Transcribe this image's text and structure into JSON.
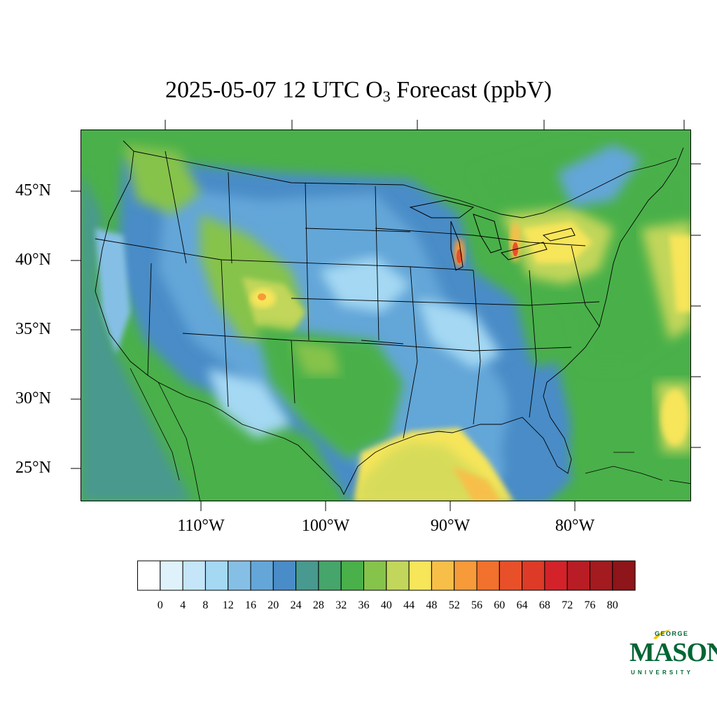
{
  "title": {
    "main": "2025-05-07 12 UTC O",
    "subscript": "3",
    "suffix": " Forecast (ppbV)"
  },
  "axes": {
    "lat_labels": [
      "45°N",
      "40°N",
      "35°N",
      "30°N",
      "25°N"
    ],
    "lon_labels": [
      "110°W",
      "100°W",
      "90°W",
      "80°W"
    ]
  },
  "colorbar": {
    "labels": [
      "0",
      "4",
      "8",
      "12",
      "16",
      "20",
      "24",
      "28",
      "32",
      "36",
      "40",
      "44",
      "48",
      "52",
      "56",
      "60",
      "64",
      "68",
      "72",
      "76",
      "80"
    ],
    "colors": [
      "#ffffff",
      "#dff1fb",
      "#c4e6f8",
      "#a4d8f3",
      "#86bfe6",
      "#64a6d8",
      "#4a8cc7",
      "#48998f",
      "#46a56a",
      "#4ab04a",
      "#86c34b",
      "#c1d65a",
      "#f7e55a",
      "#f7bf48",
      "#f69a3a",
      "#f2712c",
      "#e8502a",
      "#de3a28",
      "#d32229",
      "#b81c24",
      "#a31a1f",
      "#8e1519"
    ]
  },
  "logo": {
    "line1": "GEORGE",
    "line2": "MASON",
    "line3": "UNIVERSITY",
    "color": "#006633",
    "accent": "#f2c300"
  }
}
